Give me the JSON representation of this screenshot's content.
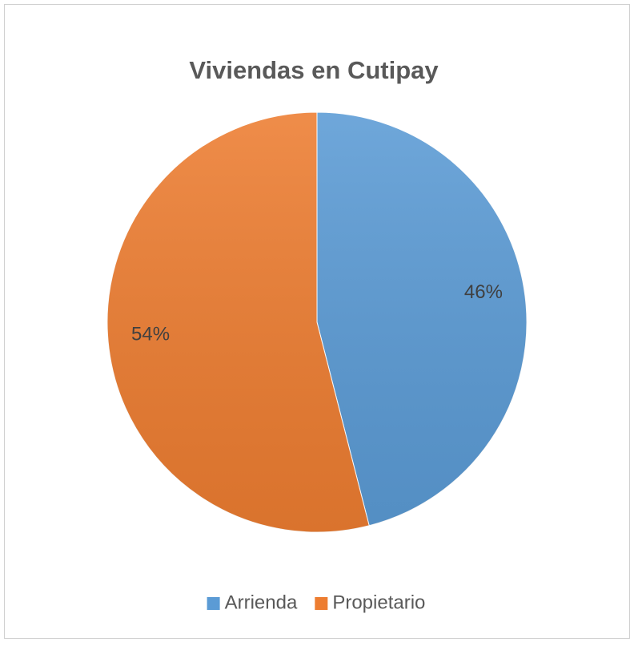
{
  "chart_data": {
    "type": "pie",
    "title": "Viviendas en Cutipay",
    "categories": [
      "Arrienda",
      "Propietario"
    ],
    "values": [
      46,
      54
    ],
    "value_labels": [
      "46%",
      "54%"
    ],
    "colors": [
      "#5b9bd5",
      "#ed7d31"
    ],
    "legend": "bottom"
  }
}
